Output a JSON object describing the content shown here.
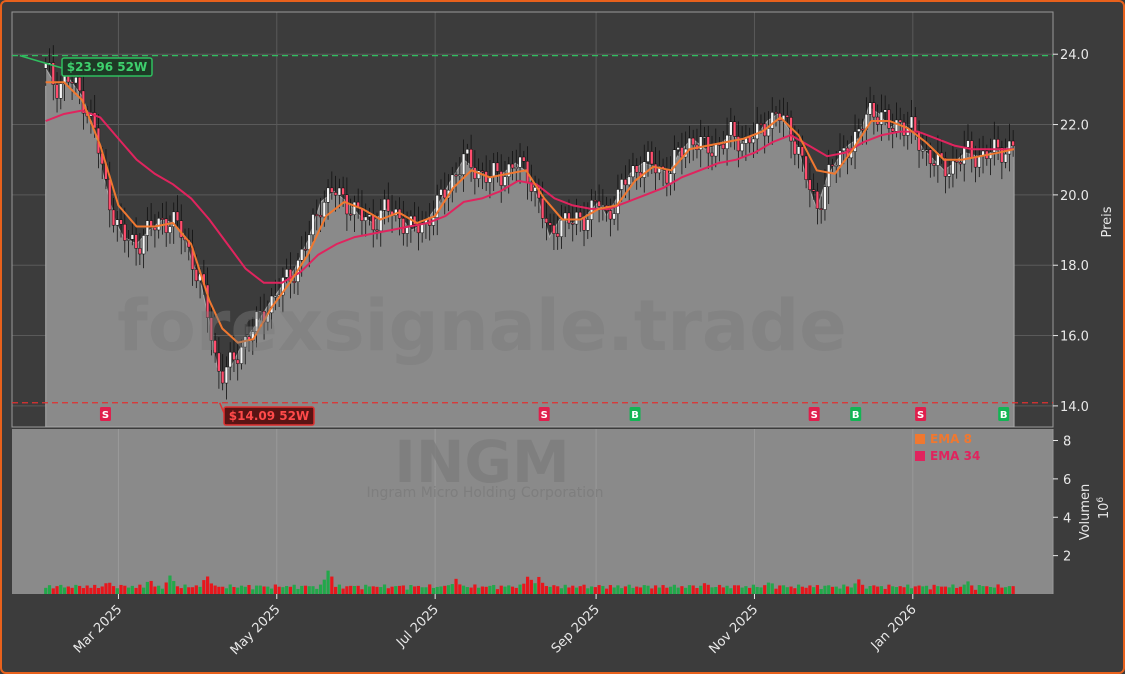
{
  "watermark": {
    "site": "forexsignale.trade",
    "ticker": "INGM",
    "company": "Ingram Micro Holding Corporation"
  },
  "price_axis_label": "Preis",
  "volume_axis_label": "Volumen",
  "volume_axis_exponent": "10",
  "volume_axis_exponent_power": "6",
  "high_label": "$23.96 52W",
  "low_label": "$14.09 52W",
  "legend": [
    {
      "label": "EMA 8",
      "color": "#f07830"
    },
    {
      "label": "EMA 34",
      "color": "#e0245e"
    }
  ],
  "colors": {
    "up": "#22a84a",
    "down": "#e8161c",
    "area": "#8a8a8a",
    "ema8": "#f07830",
    "ema34": "#e0245e",
    "high_line": "#2fbf5f",
    "low_line": "#e03030",
    "signal_buy": "#12b554",
    "signal_sell": "#e01e4c"
  },
  "chart_data": {
    "type": "line",
    "x_tick_labels": [
      "Mar 2025",
      "May 2025",
      "Jul 2025",
      "Sep 2025",
      "Nov 2025",
      "Jan 2026"
    ],
    "price_ticks": [
      "14.0",
      "16.0",
      "18.0",
      "20.0",
      "22.0",
      "24.0"
    ],
    "volume_ticks": [
      "2",
      "4",
      "6",
      "8"
    ],
    "price_ylim": [
      13.4,
      25.2
    ],
    "volume_ylim": [
      0,
      8.6
    ],
    "high_52w": 23.96,
    "low_52w": 14.09,
    "close_series": [
      [
        "2025-02-01",
        23.6
      ],
      [
        "2025-02-05",
        23.1
      ],
      [
        "2025-02-10",
        23.3
      ],
      [
        "2025-02-15",
        22.8
      ],
      [
        "2025-02-20",
        21.8
      ],
      [
        "2025-02-23",
        20.6
      ],
      [
        "2025-02-28",
        19.2
      ],
      [
        "2025-03-03",
        18.8
      ],
      [
        "2025-03-08",
        18.6
      ],
      [
        "2025-03-13",
        19.0
      ],
      [
        "2025-03-18",
        19.3
      ],
      [
        "2025-03-22",
        19.2
      ],
      [
        "2025-03-26",
        18.9
      ],
      [
        "2025-03-29",
        18.2
      ],
      [
        "2025-04-02",
        17.4
      ],
      [
        "2025-04-05",
        16.4
      ],
      [
        "2025-04-08",
        15.1
      ],
      [
        "2025-04-10",
        14.9
      ],
      [
        "2025-04-14",
        15.2
      ],
      [
        "2025-04-18",
        15.8
      ],
      [
        "2025-04-23",
        16.3
      ],
      [
        "2025-04-28",
        16.9
      ],
      [
        "2025-05-03",
        17.4
      ],
      [
        "2025-05-08",
        17.9
      ],
      [
        "2025-05-13",
        18.7
      ],
      [
        "2025-05-18",
        19.8
      ],
      [
        "2025-05-23",
        20.1
      ],
      [
        "2025-05-28",
        19.8
      ],
      [
        "2025-06-02",
        19.4
      ],
      [
        "2025-06-07",
        19.2
      ],
      [
        "2025-06-12",
        19.6
      ],
      [
        "2025-06-17",
        19.4
      ],
      [
        "2025-06-22",
        19.0
      ],
      [
        "2025-06-27",
        19.2
      ],
      [
        "2025-07-02",
        19.7
      ],
      [
        "2025-07-07",
        20.4
      ],
      [
        "2025-07-12",
        21.0
      ],
      [
        "2025-07-17",
        20.7
      ],
      [
        "2025-07-22",
        20.5
      ],
      [
        "2025-07-27",
        20.6
      ],
      [
        "2025-08-01",
        20.9
      ],
      [
        "2025-08-06",
        20.6
      ],
      [
        "2025-08-10",
        19.8
      ],
      [
        "2025-08-14",
        18.8
      ],
      [
        "2025-08-18",
        19.3
      ],
      [
        "2025-08-23",
        19.2
      ],
      [
        "2025-08-28",
        19.4
      ],
      [
        "2025-09-02",
        19.8
      ],
      [
        "2025-09-05",
        19.4
      ],
      [
        "2025-09-09",
        19.9
      ],
      [
        "2025-09-14",
        20.6
      ],
      [
        "2025-09-19",
        20.9
      ],
      [
        "2025-09-24",
        20.8
      ],
      [
        "2025-09-29",
        20.6
      ],
      [
        "2025-10-03",
        21.2
      ],
      [
        "2025-10-08",
        21.6
      ],
      [
        "2025-10-13",
        21.3
      ],
      [
        "2025-10-18",
        21.4
      ],
      [
        "2025-10-23",
        21.7
      ],
      [
        "2025-10-28",
        21.5
      ],
      [
        "2025-11-02",
        21.7
      ],
      [
        "2025-11-06",
        22.1
      ],
      [
        "2025-11-10",
        22.3
      ],
      [
        "2025-11-14",
        21.9
      ],
      [
        "2025-11-18",
        21.3
      ],
      [
        "2025-11-22",
        20.2
      ],
      [
        "2025-11-25",
        19.6
      ],
      [
        "2025-11-29",
        20.5
      ],
      [
        "2025-12-03",
        21.0
      ],
      [
        "2025-12-07",
        21.4
      ],
      [
        "2025-12-11",
        21.6
      ],
      [
        "2025-12-15",
        22.5
      ],
      [
        "2025-12-19",
        22.3
      ],
      [
        "2025-12-23",
        21.9
      ],
      [
        "2025-12-27",
        22.1
      ],
      [
        "2026-01-01",
        21.8
      ],
      [
        "2026-01-05",
        21.3
      ],
      [
        "2026-01-09",
        21.0
      ],
      [
        "2026-01-13",
        20.7
      ],
      [
        "2026-01-17",
        20.9
      ],
      [
        "2026-01-21",
        21.2
      ],
      [
        "2026-01-26",
        21.1
      ],
      [
        "2026-01-31",
        21.2
      ],
      [
        "2026-02-05",
        21.3
      ],
      [
        "2026-02-09",
        21.4
      ]
    ],
    "ema8_series": [
      [
        "2025-02-01",
        23.2
      ],
      [
        "2025-02-08",
        23.2
      ],
      [
        "2025-02-15",
        22.7
      ],
      [
        "2025-02-22",
        21.4
      ],
      [
        "2025-03-01",
        19.7
      ],
      [
        "2025-03-08",
        19.1
      ],
      [
        "2025-03-15",
        19.1
      ],
      [
        "2025-03-22",
        19.2
      ],
      [
        "2025-03-29",
        18.6
      ],
      [
        "2025-04-05",
        17.0
      ],
      [
        "2025-04-10",
        16.2
      ],
      [
        "2025-04-16",
        15.8
      ],
      [
        "2025-04-22",
        15.9
      ],
      [
        "2025-04-29",
        16.8
      ],
      [
        "2025-05-06",
        17.5
      ],
      [
        "2025-05-13",
        18.3
      ],
      [
        "2025-05-20",
        19.4
      ],
      [
        "2025-05-27",
        19.8
      ],
      [
        "2025-06-03",
        19.6
      ],
      [
        "2025-06-10",
        19.3
      ],
      [
        "2025-06-17",
        19.5
      ],
      [
        "2025-06-24",
        19.2
      ],
      [
        "2025-07-01",
        19.4
      ],
      [
        "2025-07-08",
        20.2
      ],
      [
        "2025-07-15",
        20.7
      ],
      [
        "2025-07-22",
        20.5
      ],
      [
        "2025-07-29",
        20.6
      ],
      [
        "2025-08-05",
        20.7
      ],
      [
        "2025-08-12",
        19.9
      ],
      [
        "2025-08-19",
        19.3
      ],
      [
        "2025-08-26",
        19.3
      ],
      [
        "2025-09-02",
        19.6
      ],
      [
        "2025-09-09",
        19.7
      ],
      [
        "2025-09-16",
        20.4
      ],
      [
        "2025-09-23",
        20.8
      ],
      [
        "2025-09-30",
        20.7
      ],
      [
        "2025-10-07",
        21.3
      ],
      [
        "2025-10-14",
        21.4
      ],
      [
        "2025-10-21",
        21.5
      ],
      [
        "2025-10-28",
        21.6
      ],
      [
        "2025-11-04",
        21.8
      ],
      [
        "2025-11-11",
        22.2
      ],
      [
        "2025-11-18",
        21.7
      ],
      [
        "2025-11-25",
        20.7
      ],
      [
        "2025-12-02",
        20.6
      ],
      [
        "2025-12-09",
        21.3
      ],
      [
        "2025-12-16",
        22.1
      ],
      [
        "2025-12-23",
        22.1
      ],
      [
        "2025-12-30",
        21.9
      ],
      [
        "2026-01-06",
        21.5
      ],
      [
        "2026-01-13",
        21.0
      ],
      [
        "2026-01-20",
        21.0
      ],
      [
        "2026-01-27",
        21.1
      ],
      [
        "2026-02-03",
        21.2
      ],
      [
        "2026-02-09",
        21.3
      ]
    ],
    "ema34_series": [
      [
        "2025-02-01",
        22.1
      ],
      [
        "2025-02-08",
        22.3
      ],
      [
        "2025-02-15",
        22.4
      ],
      [
        "2025-02-22",
        22.2
      ],
      [
        "2025-03-01",
        21.6
      ],
      [
        "2025-03-08",
        21.0
      ],
      [
        "2025-03-15",
        20.6
      ],
      [
        "2025-03-22",
        20.3
      ],
      [
        "2025-03-29",
        19.9
      ],
      [
        "2025-04-05",
        19.3
      ],
      [
        "2025-04-12",
        18.6
      ],
      [
        "2025-04-19",
        17.9
      ],
      [
        "2025-04-26",
        17.5
      ],
      [
        "2025-05-03",
        17.5
      ],
      [
        "2025-05-10",
        17.8
      ],
      [
        "2025-05-17",
        18.3
      ],
      [
        "2025-05-24",
        18.6
      ],
      [
        "2025-05-31",
        18.8
      ],
      [
        "2025-06-07",
        18.9
      ],
      [
        "2025-06-14",
        19.0
      ],
      [
        "2025-06-21",
        19.1
      ],
      [
        "2025-06-28",
        19.2
      ],
      [
        "2025-07-05",
        19.4
      ],
      [
        "2025-07-12",
        19.8
      ],
      [
        "2025-07-19",
        19.9
      ],
      [
        "2025-07-26",
        20.1
      ],
      [
        "2025-08-02",
        20.4
      ],
      [
        "2025-08-09",
        20.3
      ],
      [
        "2025-08-16",
        19.9
      ],
      [
        "2025-08-23",
        19.7
      ],
      [
        "2025-08-30",
        19.6
      ],
      [
        "2025-09-06",
        19.6
      ],
      [
        "2025-09-13",
        19.8
      ],
      [
        "2025-09-20",
        20.0
      ],
      [
        "2025-09-27",
        20.2
      ],
      [
        "2025-10-04",
        20.5
      ],
      [
        "2025-10-11",
        20.7
      ],
      [
        "2025-10-18",
        20.9
      ],
      [
        "2025-10-25",
        21.0
      ],
      [
        "2025-11-01",
        21.2
      ],
      [
        "2025-11-08",
        21.5
      ],
      [
        "2025-11-15",
        21.7
      ],
      [
        "2025-11-22",
        21.4
      ],
      [
        "2025-11-29",
        21.1
      ],
      [
        "2025-12-06",
        21.2
      ],
      [
        "2025-12-13",
        21.5
      ],
      [
        "2025-12-20",
        21.7
      ],
      [
        "2025-12-27",
        21.8
      ],
      [
        "2026-01-03",
        21.8
      ],
      [
        "2026-01-10",
        21.6
      ],
      [
        "2026-01-17",
        21.4
      ],
      [
        "2026-01-24",
        21.3
      ],
      [
        "2026-01-31",
        21.3
      ],
      [
        "2026-02-09",
        21.3
      ]
    ],
    "signals": [
      {
        "date": "2025-02-24",
        "type": "S"
      },
      {
        "date": "2025-04-30",
        "type": "B"
      },
      {
        "date": "2025-08-12",
        "type": "S"
      },
      {
        "date": "2025-09-16",
        "type": "B"
      },
      {
        "date": "2025-11-24",
        "type": "S"
      },
      {
        "date": "2025-12-10",
        "type": "B"
      },
      {
        "date": "2026-01-04",
        "type": "S"
      },
      {
        "date": "2026-02-05",
        "type": "B"
      }
    ],
    "volume_peaks_millions": [
      [
        "2025-02-25",
        0.7
      ],
      [
        "2025-03-13",
        0.8
      ],
      [
        "2025-03-21",
        1.0
      ],
      [
        "2025-04-04",
        1.0
      ],
      [
        "2025-05-21",
        1.3
      ],
      [
        "2025-07-09",
        0.8
      ],
      [
        "2025-08-06",
        1.0
      ],
      [
        "2025-08-10",
        0.9
      ],
      [
        "2025-10-13",
        0.6
      ],
      [
        "2025-11-07",
        0.7
      ],
      [
        "2025-12-11",
        0.8
      ],
      [
        "2026-01-22",
        0.7
      ]
    ]
  }
}
